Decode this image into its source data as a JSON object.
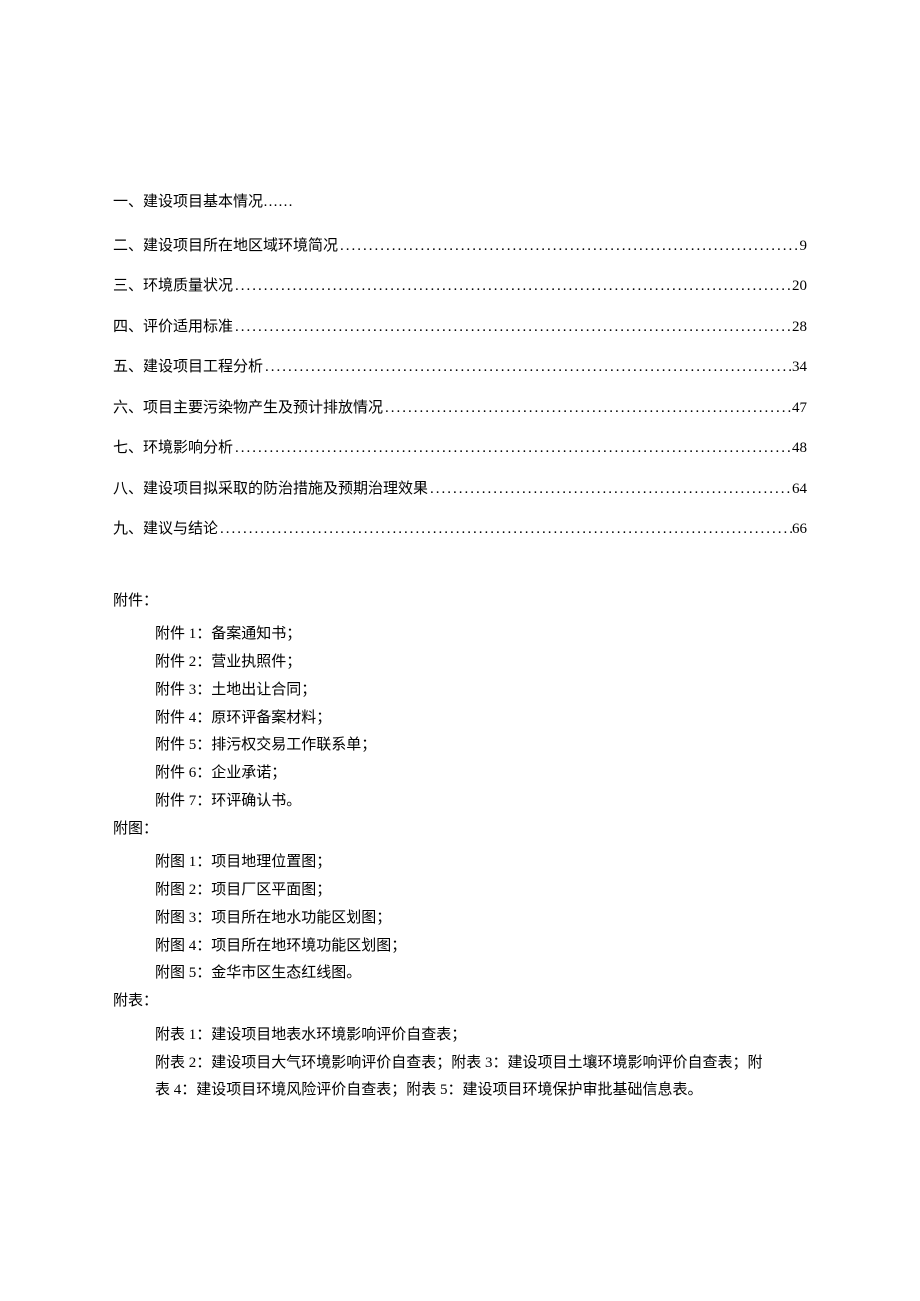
{
  "colors": {
    "background": "#ffffff",
    "text": "#000000"
  },
  "typography": {
    "font_family": "SimSun",
    "font_size_pt": 11,
    "line_height": 1.85
  },
  "toc": {
    "items": [
      {
        "label": "一、建设项目基本情况……",
        "page": null
      },
      {
        "label": "二、建设项目所在地区域环境简况",
        "page": "9"
      },
      {
        "label": "三、环境质量状况",
        "page": "20"
      },
      {
        "label": "四、评价适用标准",
        "page": "28"
      },
      {
        "label": "五、建设项目工程分析",
        "page": "34"
      },
      {
        "label": "六、项目主要污染物产生及预计排放情况",
        "page": "47"
      },
      {
        "label": "七、环境影响分析",
        "page": "48"
      },
      {
        "label": "八、建设项目拟采取的防治措施及预期治理效果",
        "page": "64"
      },
      {
        "label": "九、建议与结论",
        "page": "66"
      }
    ]
  },
  "attachments": {
    "header": "附件：",
    "items": [
      "附件 1：备案通知书；",
      "附件 2：营业执照件；",
      "附件 3：土地出让合同；",
      "附件 4：原环评备案材料；",
      "附件 5：排污权交易工作联系单；",
      "附件 6：企业承诺；",
      "附件 7：环评确认书。"
    ]
  },
  "figures": {
    "header": "附图：",
    "items": [
      "附图 1：项目地理位置图；",
      "附图 2：项目厂区平面图；",
      "附图 3：项目所在地水功能区划图；",
      "附图 4：项目所在地环境功能区划图；",
      "附图 5：金华市区生态红线图。"
    ]
  },
  "tables": {
    "header": "附表：",
    "items": [
      "附表 1：建设项目地表水环境影响评价自查表；",
      "附表 2：建设项目大气环境影响评价自查表；附表 3：建设项目土壤环境影响评价自查表；附",
      "表 4：建设项目环境风险评价自查表；附表 5：建设项目环境保护审批基础信息表。"
    ]
  }
}
